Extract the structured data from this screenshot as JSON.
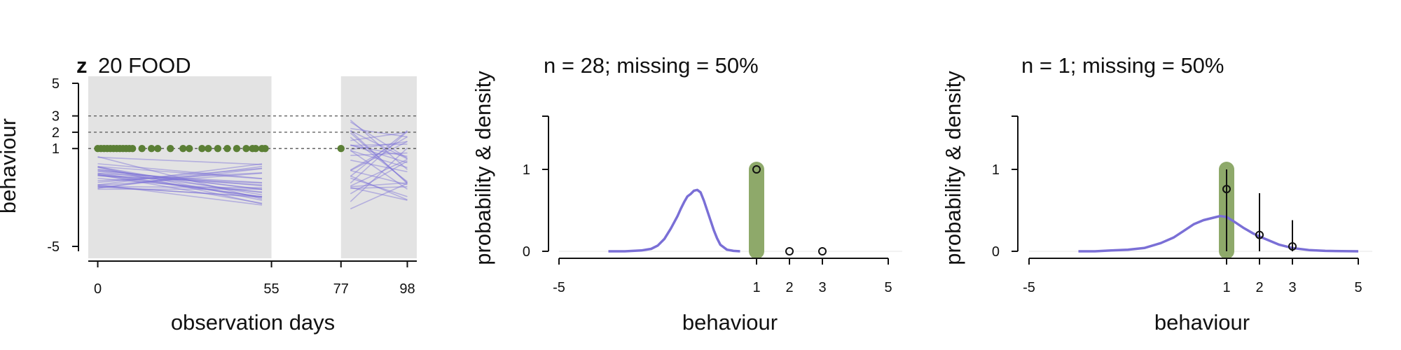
{
  "chart_data": [
    {
      "type": "line",
      "panel": "timeseries",
      "title_bold": "z",
      "title": "20 FOOD",
      "xlabel": "observation days",
      "ylabel": "behaviour",
      "x_ticks": [
        0,
        55,
        77,
        98
      ],
      "y_ticks": [
        -5,
        1,
        2,
        3,
        5
      ],
      "xlim": [
        -3,
        101
      ],
      "ylim": [
        -5.3,
        5
      ],
      "observed_windows": [
        [
          -3,
          55
        ],
        [
          77,
          101
        ]
      ],
      "reference_lines": [
        1,
        2,
        3
      ],
      "observed_points": {
        "value": 1,
        "days": [
          0,
          1,
          2,
          3,
          4,
          5,
          6,
          7,
          8,
          9,
          10,
          11,
          14,
          17,
          19,
          23,
          27,
          29,
          33,
          35,
          38,
          41,
          44,
          47,
          49,
          50,
          52,
          53,
          77
        ]
      },
      "colors": {
        "lines": "#7a6fd6",
        "points": "#5b7f35",
        "window": "#e3e3e3"
      },
      "predicted_line_bands": {
        "window1": {
          "start_range": [
            -1.6,
            0.6
          ],
          "end_range": [
            -2.6,
            0.1
          ]
        },
        "window2": {
          "start_range": [
            -2.7,
            2.8
          ],
          "end_range": [
            -2.2,
            2.2
          ]
        }
      }
    },
    {
      "type": "scatter",
      "panel": "distribution",
      "title": "n = 28; missing = 50%",
      "xlabel": "behaviour",
      "ylabel": "probability & density",
      "x_ticks": [
        -5,
        1,
        2,
        3,
        5
      ],
      "y_ticks": [
        0,
        1
      ],
      "xlim": [
        -5,
        5
      ],
      "ylim": [
        0,
        1.6
      ],
      "observed_value": 1,
      "probabilities": [
        {
          "x": 1,
          "y": 1.0,
          "low": 1.0,
          "high": 1.0
        },
        {
          "x": 2,
          "y": 0.0,
          "low": 0.0,
          "high": 0.0
        },
        {
          "x": 3,
          "y": 0.0,
          "low": 0.0,
          "high": 0.0
        }
      ],
      "density": {
        "x": [
          -3.5,
          -3.0,
          -2.5,
          -2.2,
          -2.0,
          -1.8,
          -1.6,
          -1.4,
          -1.3,
          -1.2,
          -1.1,
          -1.0,
          -0.9,
          -0.8,
          -0.7,
          -0.6,
          -0.5,
          -0.4,
          -0.3,
          -0.2,
          -0.1,
          0.1,
          0.3,
          0.5
        ],
        "y": [
          0.0,
          0.0,
          0.01,
          0.03,
          0.07,
          0.15,
          0.28,
          0.43,
          0.52,
          0.6,
          0.67,
          0.7,
          0.74,
          0.75,
          0.72,
          0.62,
          0.5,
          0.38,
          0.26,
          0.16,
          0.08,
          0.02,
          0.005,
          0.0
        ]
      },
      "colors": {
        "density": "#7a6fd6",
        "observed": "#8ea96a"
      }
    },
    {
      "type": "scatter",
      "panel": "distribution",
      "title": "n = 1; missing = 50%",
      "xlabel": "behaviour",
      "ylabel": "probability & density",
      "x_ticks": [
        -5,
        1,
        2,
        3,
        5
      ],
      "y_ticks": [
        0,
        1
      ],
      "xlim": [
        -5,
        5
      ],
      "ylim": [
        0,
        1.6
      ],
      "observed_value": 1,
      "probabilities": [
        {
          "x": 1,
          "y": 0.76,
          "low": 0.0,
          "high": 1.0
        },
        {
          "x": 2,
          "y": 0.2,
          "low": 0.0,
          "high": 0.71
        },
        {
          "x": 3,
          "y": 0.06,
          "low": 0.0,
          "high": 0.38
        }
      ],
      "density": {
        "x": [
          -3.5,
          -3.0,
          -2.5,
          -2.0,
          -1.5,
          -1.0,
          -0.6,
          -0.3,
          0.0,
          0.3,
          0.6,
          0.8,
          1.0,
          1.2,
          1.5,
          1.8,
          2.0,
          2.3,
          2.6,
          3.0,
          3.5,
          4.0,
          4.5,
          5.0
        ],
        "y": [
          0.0,
          0.0,
          0.01,
          0.02,
          0.04,
          0.1,
          0.17,
          0.25,
          0.33,
          0.38,
          0.41,
          0.43,
          0.42,
          0.37,
          0.29,
          0.22,
          0.18,
          0.13,
          0.08,
          0.04,
          0.015,
          0.005,
          0.002,
          0.0
        ]
      },
      "colors": {
        "density": "#7a6fd6",
        "observed": "#8ea96a"
      }
    }
  ]
}
